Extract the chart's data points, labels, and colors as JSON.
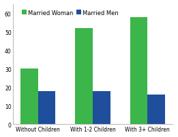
{
  "categories": [
    "Without Children",
    "With 1-2 Children",
    "With 3+ Children"
  ],
  "married_woman": [
    30,
    52,
    58
  ],
  "married_men": [
    18,
    18,
    16
  ],
  "woman_color": "#3cb54a",
  "men_color": "#1f4e9c",
  "ylim": [
    0,
    65
  ],
  "yticks": [
    0,
    10,
    20,
    30,
    40,
    50,
    60
  ],
  "legend_woman": "Married Woman",
  "legend_men": "Married Men",
  "bar_width": 0.32,
  "background_color": "#ffffff",
  "spine_color": "#aaaaaa",
  "tick_fontsize": 5.5,
  "legend_fontsize": 6.0
}
